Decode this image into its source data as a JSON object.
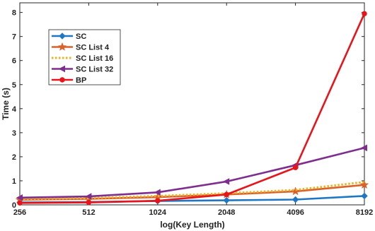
{
  "chart_data": {
    "type": "line",
    "title": "",
    "xlabel": "log(Key Length)",
    "ylabel": "Time (s)",
    "x": [
      "256",
      "512",
      "1024",
      "2048",
      "4096",
      "8192"
    ],
    "ylim": [
      0,
      8.4
    ],
    "yticks": [
      0,
      1,
      2,
      3,
      4,
      5,
      6,
      7,
      8
    ],
    "grid": false,
    "legend_position": "top-left",
    "series": [
      {
        "name": "SC",
        "color": "#1f77c4",
        "dash": "solid",
        "marker": "diamond",
        "values": [
          0.1,
          0.12,
          0.16,
          0.19,
          0.22,
          0.37
        ]
      },
      {
        "name": "SC List 4",
        "color": "#d9622b",
        "dash": "solid",
        "marker": "star",
        "values": [
          0.21,
          0.25,
          0.32,
          0.43,
          0.56,
          0.83
        ]
      },
      {
        "name": "SC List 16",
        "color": "#edb120",
        "dash": "dotted",
        "marker": "none",
        "values": [
          0.24,
          0.28,
          0.37,
          0.48,
          0.62,
          0.95
        ]
      },
      {
        "name": "SC List 32",
        "color": "#7e2f8e",
        "dash": "solid",
        "marker": "triangle-left",
        "values": [
          0.3,
          0.35,
          0.52,
          0.97,
          1.65,
          2.37
        ]
      },
      {
        "name": "BP",
        "color": "#e8141b",
        "dash": "solid",
        "marker": "circle",
        "values": [
          0.08,
          0.1,
          0.17,
          0.43,
          1.55,
          7.95
        ]
      }
    ]
  }
}
